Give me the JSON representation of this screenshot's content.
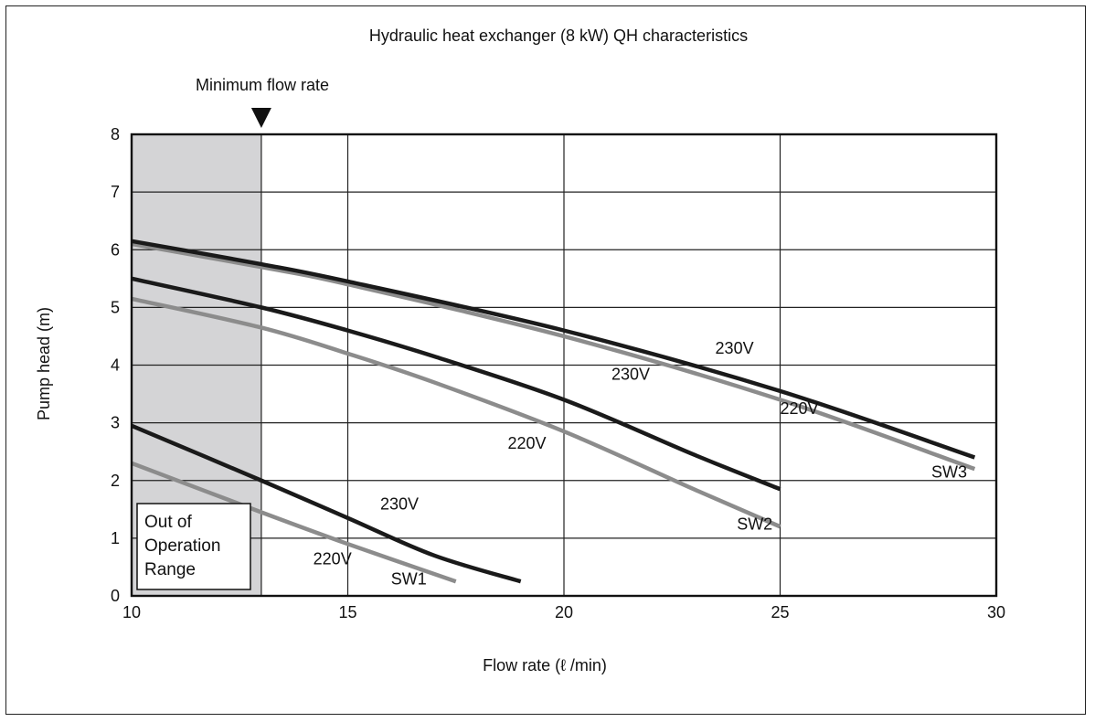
{
  "chart_data": {
    "type": "line",
    "title": "Hydraulic heat exchanger (8 kW) QH characteristics",
    "xlabel": "Flow rate (ℓ /min)",
    "ylabel": "Pump head (m)",
    "xlim": [
      10,
      30
    ],
    "ylim": [
      0,
      8
    ],
    "xticks": [
      "10",
      "15",
      "20",
      "25",
      "30"
    ],
    "yticks": [
      "0",
      "1",
      "2",
      "3",
      "4",
      "5",
      "6",
      "7",
      "8"
    ],
    "grid": true,
    "min_flow": {
      "label": "Minimum flow rate",
      "x": 13
    },
    "out_of_range": {
      "label": [
        "Out of",
        "Operation",
        "Range"
      ],
      "x_from": 10,
      "x_to": 13
    },
    "colors": {
      "v230": "#1a1a1a",
      "v220": "#8c8c8c",
      "shade": "#d4d4d6"
    },
    "series": [
      {
        "group": "SW1",
        "name": "230V",
        "color": "#1a1a1a",
        "x": [
          10,
          13,
          15,
          17,
          19
        ],
        "y": [
          2.95,
          2.0,
          1.35,
          0.7,
          0.25
        ]
      },
      {
        "group": "SW1",
        "name": "220V",
        "color": "#8c8c8c",
        "x": [
          10,
          13,
          15,
          17.5
        ],
        "y": [
          2.3,
          1.45,
          0.9,
          0.25
        ]
      },
      {
        "group": "SW2",
        "name": "230V",
        "color": "#1a1a1a",
        "x": [
          10,
          13,
          15,
          17,
          20,
          23,
          25
        ],
        "y": [
          5.5,
          5.0,
          4.6,
          4.15,
          3.4,
          2.45,
          1.85
        ]
      },
      {
        "group": "SW2",
        "name": "220V",
        "color": "#8c8c8c",
        "x": [
          10,
          13,
          15,
          17,
          20,
          23,
          25
        ],
        "y": [
          5.15,
          4.65,
          4.2,
          3.7,
          2.85,
          1.85,
          1.2
        ]
      },
      {
        "group": "SW3",
        "name": "230V",
        "color": "#1a1a1a",
        "x": [
          10,
          13,
          15,
          20,
          25,
          29.5
        ],
        "y": [
          6.15,
          5.75,
          5.45,
          4.6,
          3.55,
          2.4
        ]
      },
      {
        "group": "SW3",
        "name": "220V",
        "color": "#8c8c8c",
        "x": [
          10,
          13,
          15,
          20,
          25,
          29.5
        ],
        "y": [
          6.1,
          5.7,
          5.4,
          4.5,
          3.4,
          2.2
        ]
      }
    ],
    "annotations": [
      {
        "text": "230V",
        "x": 15.75,
        "y": 1.5
      },
      {
        "text": "220V",
        "x": 14.2,
        "y": 0.55
      },
      {
        "text": "SW1",
        "x": 16.0,
        "y": 0.2
      },
      {
        "text": "230V",
        "x": 21.1,
        "y": 3.75
      },
      {
        "text": "220V",
        "x": 18.7,
        "y": 2.55
      },
      {
        "text": "SW2",
        "x": 24.0,
        "y": 1.15
      },
      {
        "text": "230V",
        "x": 23.5,
        "y": 4.2
      },
      {
        "text": "220V",
        "x": 25.0,
        "y": 3.15
      },
      {
        "text": "SW3",
        "x": 28.5,
        "y": 2.05
      }
    ]
  }
}
